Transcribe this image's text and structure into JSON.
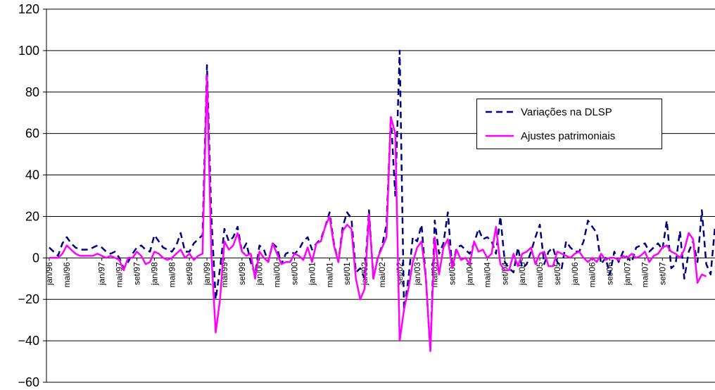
{
  "chart_data": {
    "type": "line",
    "title": "",
    "xlabel": "",
    "ylabel": "",
    "ylim": [
      -60,
      120
    ],
    "yticks": [
      120,
      100,
      80,
      60,
      40,
      20,
      0,
      -20,
      -40,
      -60
    ],
    "ytick_labels": [
      "120",
      "100",
      "80",
      "60",
      "40",
      "20",
      "0",
      "−20",
      "−40",
      "−60"
    ],
    "grid": "horizontal",
    "legend_position": "right",
    "x_tick_labels": [
      "jan/96",
      "mai/96",
      "jan/97",
      "mai/97",
      "set/97",
      "jan/98",
      "mai/98",
      "set/98",
      "jan/99",
      "mai/99",
      "set/99",
      "jan/00",
      "mai/00",
      "set/00",
      "jan/01",
      "mai/01",
      "set/01",
      "jan/02",
      "mai/02",
      "set/02",
      "jan/03",
      "mai/03",
      "set/03",
      "jan/04",
      "mai/04",
      "set/04",
      "jan/05",
      "mai/05",
      "set/05",
      "jan/06",
      "mai/06",
      "set/06",
      "jan/07",
      "mai/07",
      "set/07"
    ],
    "x_tick_index": [
      0,
      4,
      12,
      16,
      20,
      24,
      28,
      32,
      36,
      40,
      44,
      48,
      52,
      56,
      60,
      64,
      68,
      72,
      76,
      80,
      84,
      88,
      92,
      96,
      100,
      104,
      108,
      112,
      116,
      120,
      124,
      128,
      132,
      136,
      140
    ],
    "series": [
      {
        "name": "Variações na DLSP",
        "color": "#000080",
        "dash": "dashed",
        "values": [
          5,
          3,
          1,
          7,
          10,
          7,
          5,
          4,
          4,
          4,
          5,
          6,
          5,
          3,
          2,
          3,
          0,
          -5,
          -2,
          2,
          5,
          6,
          4,
          3,
          11,
          8,
          5,
          4,
          3,
          6,
          12,
          3,
          3,
          7,
          9,
          11,
          93,
          20,
          -20,
          -5,
          14,
          8,
          10,
          15,
          3,
          7,
          -2,
          -8,
          6,
          4,
          -2,
          7,
          5,
          -3,
          2,
          3,
          2,
          4,
          8,
          10,
          4,
          7,
          9,
          15,
          22,
          7,
          -2,
          15,
          22,
          19,
          -7,
          -5,
          -10,
          23,
          -10,
          0,
          6,
          16,
          68,
          30,
          100,
          -25,
          -10,
          10,
          8,
          16,
          -10,
          -45,
          18,
          2,
          7,
          22,
          -5,
          5,
          6,
          4,
          2,
          7,
          14,
          9,
          10,
          8,
          2,
          20,
          -2,
          -5,
          -7,
          5,
          -5,
          -3,
          3,
          10,
          16,
          -3,
          3,
          5,
          -2,
          -5,
          8,
          5,
          3,
          3,
          8,
          18,
          15,
          12,
          -3,
          0,
          -8,
          3,
          -2,
          3,
          0,
          -2,
          5,
          6,
          7,
          3,
          5,
          7,
          4,
          18,
          -5,
          -3,
          13,
          -10,
          3,
          8,
          -2,
          23,
          -3,
          -8,
          15
        ]
      },
      {
        "name": "Ajustes patrimoniais",
        "color": "#ff00ff",
        "dash": "solid",
        "values": [
          0,
          0,
          0,
          2,
          6,
          4,
          2,
          1,
          1,
          1,
          1,
          2,
          1,
          0,
          1,
          0,
          -1,
          -6,
          0,
          0,
          3,
          1,
          -3,
          -2,
          3,
          2,
          0,
          -1,
          0,
          2,
          4,
          0,
          2,
          -1,
          1,
          2,
          88,
          2,
          -36,
          -20,
          8,
          4,
          6,
          12,
          3,
          1,
          2,
          -10,
          3,
          0,
          -2,
          7,
          2,
          -3,
          -2,
          -2,
          2,
          1,
          -1,
          5,
          -2,
          7,
          8,
          15,
          20,
          6,
          -2,
          13,
          16,
          14,
          -10,
          -20,
          -15,
          21,
          -10,
          0,
          5,
          10,
          68,
          60,
          -40,
          -25,
          -15,
          -2,
          5,
          8,
          -10,
          -45,
          10,
          -8,
          5,
          9,
          -5,
          4,
          -1,
          0,
          -3,
          8,
          3,
          4,
          0,
          2,
          15,
          -3,
          -6,
          -6,
          2,
          -4,
          2,
          3,
          5,
          -3,
          2,
          3,
          -4,
          -4,
          3,
          2,
          1,
          0,
          2,
          3,
          0,
          -2,
          0,
          -2,
          2,
          -1,
          0,
          0,
          -1,
          1,
          0,
          2,
          0,
          1,
          3,
          -2,
          1,
          2,
          5,
          6,
          3,
          2,
          0,
          4,
          12,
          9,
          -12,
          -8,
          -9
        ]
      }
    ]
  },
  "legend": {
    "items": [
      {
        "label": "Variações na DLSP",
        "color": "#000080"
      },
      {
        "label": "Ajustes patrimoniais",
        "color": "#ff00ff"
      }
    ]
  }
}
